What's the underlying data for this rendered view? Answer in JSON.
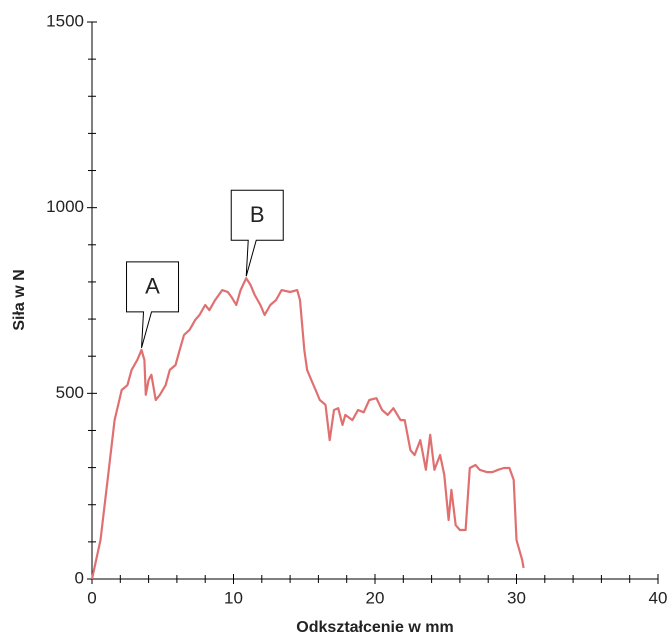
{
  "chart_data": {
    "type": "line",
    "xlabel": "Odkształcenie w mm",
    "ylabel": "Siła w N",
    "color": "#e07070",
    "xlim": [
      0,
      40
    ],
    "ylim": [
      0,
      1500
    ],
    "xticks": [
      0,
      10,
      20,
      30,
      40
    ],
    "yticks": [
      0,
      500,
      1000,
      1500
    ],
    "x": [
      0,
      0.6,
      1.1,
      1.6,
      2.1,
      2.5,
      2.8,
      3.2,
      3.5,
      3.7,
      3.8,
      4.0,
      4.2,
      4.5,
      4.8,
      5.2,
      5.5,
      5.9,
      6.2,
      6.5,
      6.9,
      7.3,
      7.6,
      8.0,
      8.3,
      8.7,
      9.2,
      9.6,
      9.9,
      10.2,
      10.5,
      10.9,
      11.2,
      11.5,
      11.9,
      12.2,
      12.6,
      13.0,
      13.4,
      14.0,
      14.5,
      14.7,
      15.0,
      15.2,
      15.5,
      15.8,
      16.1,
      16.5,
      16.8,
      17.1,
      17.4,
      17.7,
      17.9,
      18.4,
      18.8,
      19.2,
      19.6,
      20.1,
      20.5,
      20.9,
      21.3,
      21.8,
      22.1,
      22.5,
      22.8,
      23.2,
      23.6,
      23.9,
      24.2,
      24.6,
      24.9,
      25.2,
      25.4,
      25.7,
      26.0,
      26.4,
      26.7,
      27.1,
      27.4,
      27.9,
      28.3,
      28.7,
      29.1,
      29.5,
      29.8,
      30.0,
      30.4,
      30.5
    ],
    "values": [
      0,
      105,
      267,
      428,
      509,
      522,
      563,
      590,
      617,
      590,
      496,
      536,
      550,
      482,
      496,
      522,
      563,
      576,
      617,
      657,
      671,
      698,
      711,
      738,
      724,
      751,
      778,
      773,
      757,
      738,
      778,
      810,
      792,
      765,
      738,
      711,
      738,
      751,
      778,
      773,
      778,
      751,
      617,
      563,
      536,
      509,
      482,
      469,
      374,
      455,
      460,
      415,
      442,
      428,
      455,
      449,
      482,
      487,
      455,
      442,
      460,
      428,
      428,
      347,
      334,
      374,
      294,
      388,
      294,
      334,
      280,
      159,
      240,
      145,
      132,
      132,
      299,
      307,
      294,
      288,
      288,
      294,
      299,
      299,
      267,
      105,
      51,
      30
    ],
    "annotations": [
      {
        "text": "A",
        "x": 3.5,
        "y": 617
      },
      {
        "text": "B",
        "x": 10.9,
        "y": 810
      }
    ]
  }
}
